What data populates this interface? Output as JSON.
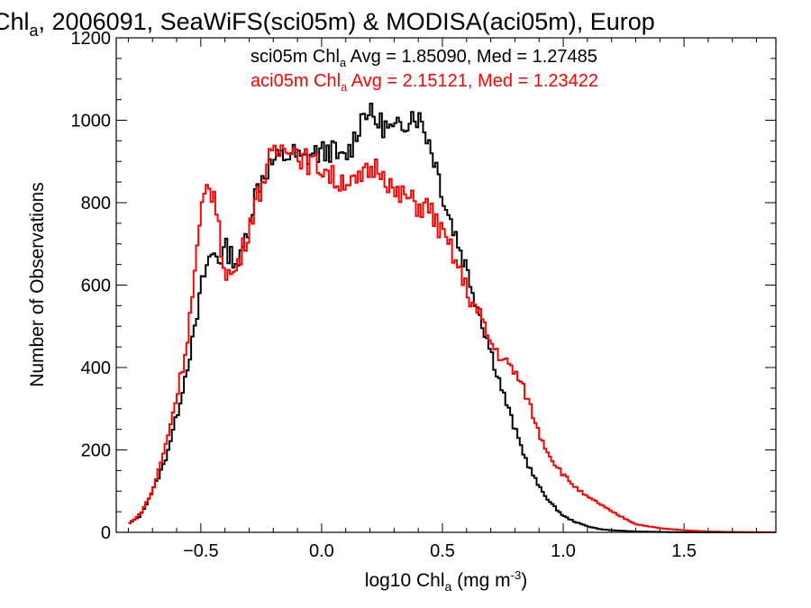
{
  "chart_data": {
    "type": "line",
    "title_parts": [
      "Chl",
      "a",
      ", 2006091, SeaWiFS(sci05m) & MODISA(aci05m), Europ"
    ],
    "xlabel_parts": [
      "log10 Chl",
      "a",
      " (mg m",
      "-3",
      ")"
    ],
    "ylabel": "Number of Observations",
    "xlim": [
      -0.85,
      1.88
    ],
    "ylim": [
      0,
      1200
    ],
    "x_ticks": [
      {
        "value": -0.5,
        "label": "−0.5"
      },
      {
        "value": 0.0,
        "label": "0.0"
      },
      {
        "value": 0.5,
        "label": "0.5"
      },
      {
        "value": 1.0,
        "label": "1.0"
      },
      {
        "value": 1.5,
        "label": "1.5"
      }
    ],
    "y_ticks": [
      {
        "value": 0,
        "label": "0"
      },
      {
        "value": 200,
        "label": "200"
      },
      {
        "value": 400,
        "label": "400"
      },
      {
        "value": 600,
        "label": "600"
      },
      {
        "value": 800,
        "label": "800"
      },
      {
        "value": 1000,
        "label": "1000"
      },
      {
        "value": 1200,
        "label": "1200"
      }
    ],
    "annotations": [
      {
        "color": "#000000",
        "parts": [
          "sci05m Chl",
          "a",
          " Avg = 1.85090, Med = 1.27485"
        ]
      },
      {
        "color": "#ff0000",
        "parts": [
          "aci05m Chl",
          "a",
          " Avg = 2.15121, Med = 1.23422"
        ]
      }
    ],
    "series": [
      {
        "color": "#000000",
        "points": [
          [
            -0.8,
            20
          ],
          [
            -0.75,
            40
          ],
          [
            -0.7,
            100
          ],
          [
            -0.65,
            170
          ],
          [
            -0.6,
            280
          ],
          [
            -0.55,
            420
          ],
          [
            -0.52,
            500
          ],
          [
            -0.5,
            590
          ],
          [
            -0.47,
            660
          ],
          [
            -0.44,
            680
          ],
          [
            -0.42,
            660
          ],
          [
            -0.4,
            690
          ],
          [
            -0.37,
            670
          ],
          [
            -0.34,
            650
          ],
          [
            -0.32,
            700
          ],
          [
            -0.3,
            760
          ],
          [
            -0.27,
            830
          ],
          [
            -0.24,
            870
          ],
          [
            -0.2,
            900
          ],
          [
            -0.16,
            910
          ],
          [
            -0.12,
            920
          ],
          [
            -0.08,
            900
          ],
          [
            -0.04,
            920
          ],
          [
            0.0,
            920
          ],
          [
            0.04,
            930
          ],
          [
            0.08,
            900
          ],
          [
            0.12,
            930
          ],
          [
            0.15,
            980
          ],
          [
            0.18,
            1030
          ],
          [
            0.22,
            1000
          ],
          [
            0.25,
            990
          ],
          [
            0.3,
            970
          ],
          [
            0.35,
            1000
          ],
          [
            0.38,
            1020
          ],
          [
            0.42,
            990
          ],
          [
            0.45,
            940
          ],
          [
            0.48,
            880
          ],
          [
            0.51,
            800
          ],
          [
            0.55,
            730
          ],
          [
            0.6,
            640
          ],
          [
            0.65,
            540
          ],
          [
            0.7,
            440
          ],
          [
            0.75,
            340
          ],
          [
            0.8,
            250
          ],
          [
            0.85,
            170
          ],
          [
            0.9,
            110
          ],
          [
            0.95,
            70
          ],
          [
            1.0,
            40
          ],
          [
            1.05,
            25
          ],
          [
            1.1,
            15
          ],
          [
            1.15,
            8
          ],
          [
            1.2,
            5
          ],
          [
            1.3,
            2
          ],
          [
            1.4,
            1
          ],
          [
            1.5,
            0
          ],
          [
            1.88,
            0
          ]
        ]
      },
      {
        "color": "#ff0000",
        "points": [
          [
            -0.8,
            20
          ],
          [
            -0.75,
            45
          ],
          [
            -0.7,
            100
          ],
          [
            -0.65,
            200
          ],
          [
            -0.6,
            330
          ],
          [
            -0.56,
            450
          ],
          [
            -0.53,
            600
          ],
          [
            -0.5,
            760
          ],
          [
            -0.47,
            850
          ],
          [
            -0.44,
            810
          ],
          [
            -0.42,
            700
          ],
          [
            -0.4,
            640
          ],
          [
            -0.37,
            620
          ],
          [
            -0.34,
            660
          ],
          [
            -0.31,
            720
          ],
          [
            -0.28,
            790
          ],
          [
            -0.25,
            840
          ],
          [
            -0.22,
            900
          ],
          [
            -0.18,
            920
          ],
          [
            -0.14,
            950
          ],
          [
            -0.1,
            920
          ],
          [
            -0.06,
            900
          ],
          [
            -0.02,
            890
          ],
          [
            0.02,
            880
          ],
          [
            0.06,
            850
          ],
          [
            0.1,
            860
          ],
          [
            0.14,
            840
          ],
          [
            0.17,
            860
          ],
          [
            0.2,
            880
          ],
          [
            0.24,
            890
          ],
          [
            0.28,
            850
          ],
          [
            0.31,
            810
          ],
          [
            0.34,
            820
          ],
          [
            0.38,
            800
          ],
          [
            0.41,
            790
          ],
          [
            0.44,
            790
          ],
          [
            0.47,
            760
          ],
          [
            0.5,
            720
          ],
          [
            0.54,
            680
          ],
          [
            0.58,
            620
          ],
          [
            0.62,
            560
          ],
          [
            0.66,
            520
          ],
          [
            0.7,
            460
          ],
          [
            0.75,
            420
          ],
          [
            0.8,
            390
          ],
          [
            0.85,
            330
          ],
          [
            0.9,
            240
          ],
          [
            0.95,
            180
          ],
          [
            1.0,
            140
          ],
          [
            1.05,
            110
          ],
          [
            1.1,
            85
          ],
          [
            1.15,
            70
          ],
          [
            1.2,
            50
          ],
          [
            1.25,
            35
          ],
          [
            1.3,
            20
          ],
          [
            1.4,
            10
          ],
          [
            1.5,
            5
          ],
          [
            1.6,
            2
          ],
          [
            1.7,
            1
          ],
          [
            1.88,
            0
          ]
        ]
      }
    ]
  }
}
